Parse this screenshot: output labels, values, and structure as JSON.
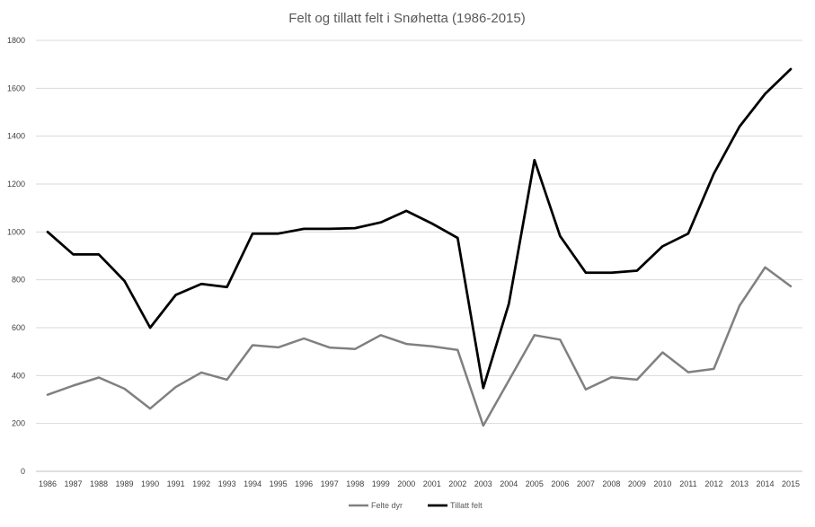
{
  "chart_data": {
    "type": "line",
    "title": "Felt og tillatt  felt i Snøhetta (1986-2015)",
    "xlabel": "",
    "ylabel": "",
    "ylim": [
      0,
      1800
    ],
    "yticks": [
      "0",
      "200",
      "400",
      "600",
      "800",
      "1000",
      "1200",
      "1400",
      "1600",
      "1800"
    ],
    "grid": "horizontal",
    "legend_position": "bottom",
    "categories": [
      "1986",
      "1987",
      "1988",
      "1989",
      "1990",
      "1991",
      "1992",
      "1993",
      "1994",
      "1995",
      "1996",
      "1997",
      "1998",
      "1999",
      "2000",
      "2001",
      "2002",
      "2003",
      "2004",
      "2005",
      "2006",
      "2007",
      "2008",
      "2009",
      "2010",
      "2011",
      "2012",
      "2013",
      "2014",
      "2015"
    ],
    "series": [
      {
        "name": "Felte dyr",
        "color": "#808080",
        "values": [
          320,
          358,
          392,
          345,
          262,
          352,
          413,
          383,
          527,
          518,
          555,
          517,
          511,
          569,
          532,
          522,
          507,
          191,
          380,
          569,
          550,
          342,
          393,
          383,
          497,
          414,
          428,
          692,
          852,
          773
        ]
      },
      {
        "name": "Tillatt felt",
        "color": "#000000",
        "values": [
          1000,
          906,
          906,
          795,
          600,
          737,
          783,
          770,
          993,
          993,
          1013,
          1013,
          1016,
          1040,
          1088,
          1035,
          975,
          348,
          700,
          1300,
          983,
          830,
          830,
          838,
          940,
          993,
          1243,
          1440,
          1577,
          1680
        ]
      }
    ]
  }
}
